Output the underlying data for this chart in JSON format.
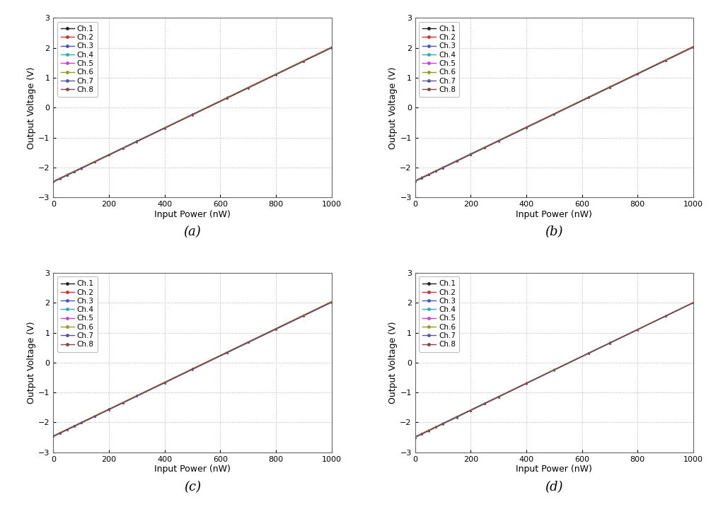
{
  "channels": [
    "Ch.1",
    "Ch.2",
    "Ch.3",
    "Ch.4",
    "Ch.5",
    "Ch.6",
    "Ch.7",
    "Ch.8"
  ],
  "channel_colors": [
    "#222222",
    "#cc3333",
    "#4455cc",
    "#33aaaa",
    "#cc44cc",
    "#999922",
    "#5555aa",
    "#884444"
  ],
  "x_range": [
    0,
    1000
  ],
  "y_range": [
    -3,
    3
  ],
  "xlabel": "Input Power (nW)",
  "ylabel": "Output Voltage (V)",
  "subplot_labels": [
    "(a)",
    "(b)",
    "(c)",
    "(d)"
  ],
  "panels": [
    {
      "slopes": [
        0.00448,
        0.00449,
        0.00448,
        0.00449,
        0.00448,
        0.00449,
        0.00448,
        0.00449
      ],
      "intercepts": [
        -2.48,
        -2.47,
        -2.46,
        -2.48,
        -2.47,
        -2.46,
        -2.47,
        -2.48
      ]
    },
    {
      "slopes": [
        0.00448,
        0.00449,
        0.00448,
        0.00449,
        0.00448,
        0.00449,
        0.00448,
        0.00449
      ],
      "intercepts": [
        -2.46,
        -2.45,
        -2.44,
        -2.46,
        -2.45,
        -2.44,
        -2.45,
        -2.46
      ]
    },
    {
      "slopes": [
        0.00448,
        0.00449,
        0.00448,
        0.00449,
        0.00448,
        0.00449,
        0.00448,
        0.00449
      ],
      "intercepts": [
        -2.46,
        -2.47,
        -2.45,
        -2.47,
        -2.46,
        -2.45,
        -2.47,
        -2.46
      ]
    },
    {
      "slopes": [
        0.0045,
        0.00449,
        0.00449,
        0.0045,
        0.00449,
        0.00449,
        0.0045,
        0.00449
      ],
      "intercepts": [
        -2.5,
        -2.49,
        -2.48,
        -2.5,
        -2.49,
        -2.48,
        -2.5,
        -2.49
      ]
    }
  ],
  "scatter_x": [
    0,
    25,
    50,
    75,
    100,
    150,
    200,
    250,
    300,
    400,
    500,
    625,
    700,
    800,
    900,
    1000
  ],
  "background_color": "#ffffff",
  "grid_color": "#aaaaaa",
  "fig_width": 10.05,
  "fig_height": 7.27,
  "dpi": 100
}
